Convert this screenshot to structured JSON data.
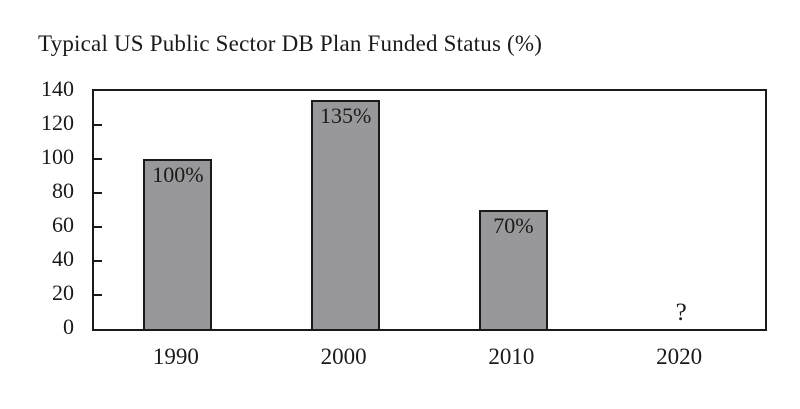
{
  "chart_data": {
    "type": "bar",
    "title": "Typical US Public Sector DB Plan Funded Status (%)",
    "categories": [
      "1990",
      "2000",
      "2010",
      "2020"
    ],
    "values": [
      100,
      135,
      70,
      null
    ],
    "bar_labels": [
      "100%",
      "135%",
      "70%",
      "?"
    ],
    "ylim": [
      0,
      140
    ],
    "yticks": [
      0,
      20,
      40,
      60,
      80,
      100,
      120,
      140
    ],
    "xlabel": "",
    "ylabel": "",
    "grid": false,
    "legend_position": "none",
    "bar_color": "#98989a",
    "axis_color": "#1a1a1a",
    "text_color": "#1a1a1a",
    "background_color": "#ffffff"
  }
}
